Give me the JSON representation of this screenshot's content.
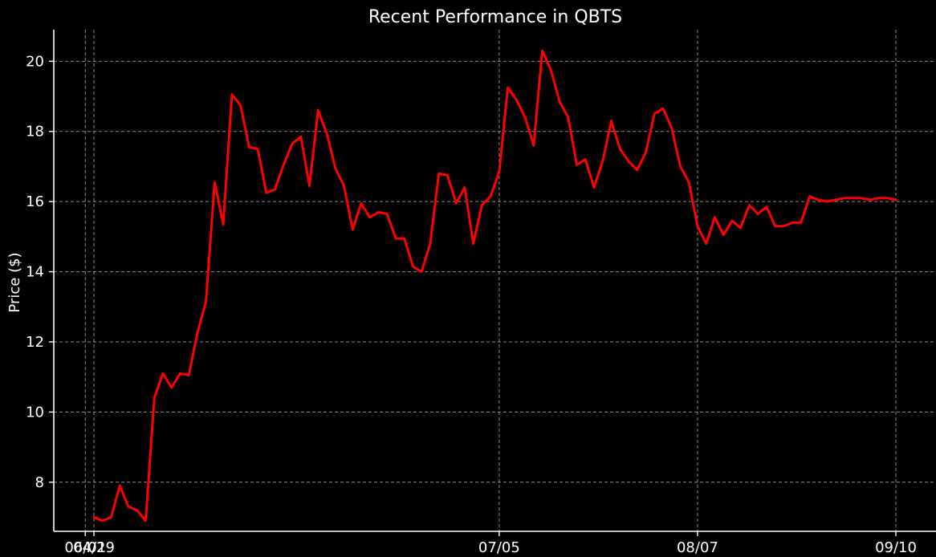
{
  "chart_data": {
    "type": "line",
    "title": "Recent Performance in QBTS",
    "xlabel": "",
    "ylabel": "Price ($)",
    "ylim": [
      6.6,
      20.9
    ],
    "yticks": [
      8,
      10,
      12,
      14,
      16,
      18,
      20
    ],
    "xtick_labels": [
      "04/29",
      "06/01",
      "07/05",
      "08/07",
      "09/10"
    ],
    "grid": true,
    "legend": "none",
    "line_color": "#ff0000",
    "series": [
      {
        "x": [
          "04/29",
          "04/30",
          "05/01",
          "05/02",
          "05/03",
          "05/06",
          "05/07",
          "05/08",
          "05/09",
          "05/10",
          "05/13",
          "05/14",
          "05/15",
          "05/16",
          "05/17",
          "05/20",
          "05/21",
          "05/22",
          "05/23",
          "05/24",
          "05/28",
          "05/29",
          "05/30",
          "05/31",
          "06/03",
          "06/04",
          "06/05",
          "06/06",
          "06/07",
          "06/10",
          "06/11",
          "06/12",
          "06/13",
          "06/14",
          "06/17",
          "06/18",
          "06/19",
          "06/20",
          "06/21",
          "06/24",
          "06/25",
          "06/26",
          "06/27",
          "06/28",
          "07/01",
          "07/02",
          "07/03",
          "07/05",
          "07/08",
          "07/09",
          "07/10",
          "07/11",
          "07/12",
          "07/15",
          "07/16",
          "07/17",
          "07/18",
          "07/19",
          "07/22",
          "07/23",
          "07/24",
          "07/25",
          "07/26",
          "07/29",
          "07/30",
          "07/31",
          "08/01",
          "08/02",
          "08/05",
          "08/06",
          "08/07",
          "08/08",
          "08/09",
          "08/12",
          "08/13",
          "08/14",
          "08/15",
          "08/16",
          "08/19",
          "08/20",
          "08/21",
          "08/22",
          "08/23",
          "08/26",
          "08/27",
          "08/28",
          "08/29",
          "08/30",
          "09/03",
          "09/04",
          "09/05",
          "09/06",
          "09/09",
          "09/10"
        ],
        "values": [
          7.0,
          6.9,
          7.0,
          7.9,
          7.3,
          7.2,
          6.9,
          10.4,
          11.1,
          10.7,
          11.1,
          11.05,
          12.25,
          13.15,
          16.55,
          15.35,
          19.05,
          18.75,
          17.55,
          17.5,
          16.25,
          16.35,
          17.05,
          17.65,
          17.85,
          16.45,
          18.6,
          17.95,
          16.95,
          16.45,
          15.2,
          15.95,
          15.55,
          15.7,
          15.65,
          14.95,
          14.95,
          14.15,
          14.0,
          14.8,
          16.8,
          16.75,
          15.95,
          16.4,
          14.8,
          15.9,
          16.15,
          16.85,
          19.25,
          18.9,
          18.4,
          17.6,
          20.3,
          19.75,
          18.85,
          18.4,
          17.05,
          17.2,
          16.4,
          17.15,
          18.3,
          17.5,
          17.15,
          16.9,
          17.4,
          18.5,
          18.65,
          18.1,
          17.0,
          16.55,
          15.3,
          14.8,
          15.55,
          15.05,
          15.45,
          15.25,
          15.9,
          15.65,
          15.85,
          15.3,
          15.3,
          15.4,
          15.4,
          16.15,
          16.05,
          16.0,
          16.05,
          16.1,
          16.1,
          16.1,
          16.05,
          16.1,
          16.1,
          16.05
        ]
      }
    ]
  }
}
